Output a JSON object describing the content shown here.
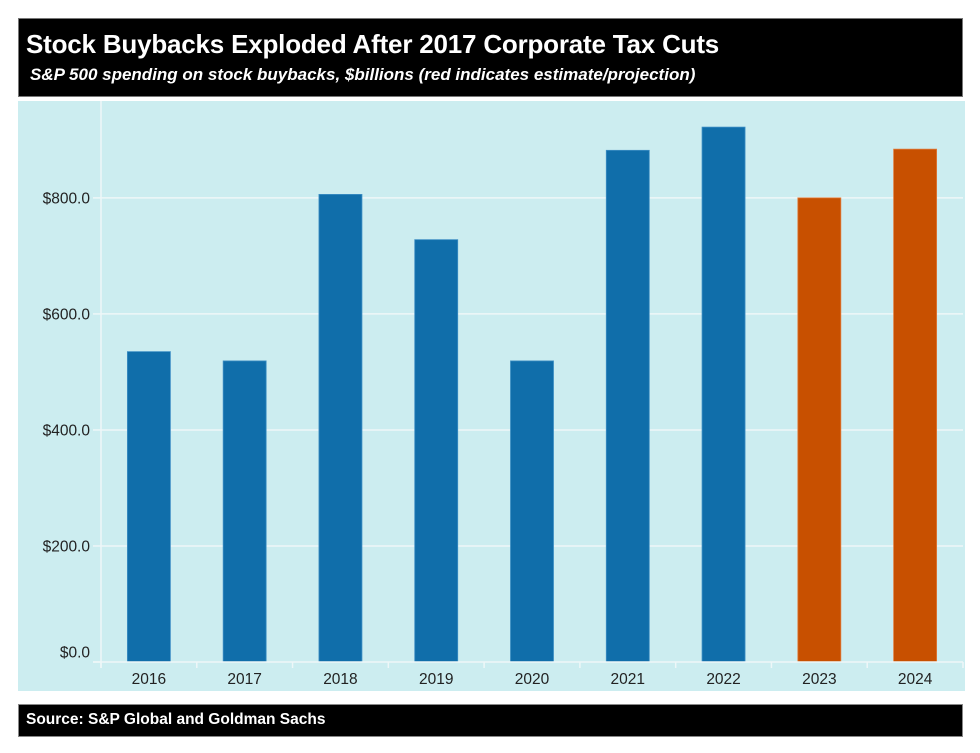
{
  "header": {
    "title": "Stock Buybacks Exploded After 2017 Corporate Tax Cuts",
    "subtitle": "S&P 500 spending on stock buybacks, $billions (red indicates estimate/projection)"
  },
  "footer": {
    "source": "Source: S&P Global and Goldman Sachs"
  },
  "colors": {
    "background": "#CCEDF0",
    "gridline": "#EEF7F8",
    "actual": "#106EAA",
    "estimate": "#C85000",
    "text": "#222222"
  },
  "chart_data": {
    "type": "bar",
    "title": "Stock Buybacks Exploded After 2017 Corporate Tax Cuts",
    "subtitle": "S&P 500 spending on stock buybacks, $billions (red indicates estimate/projection)",
    "xlabel": "",
    "ylabel": "",
    "categories": [
      "2016",
      "2017",
      "2018",
      "2019",
      "2020",
      "2021",
      "2022",
      "2023",
      "2024"
    ],
    "values": [
      535,
      519,
      806,
      728,
      519,
      882,
      922,
      800,
      884
    ],
    "estimate": [
      false,
      false,
      false,
      false,
      false,
      false,
      false,
      true,
      true
    ],
    "ylim": [
      0,
      967
    ],
    "yticks": [
      0,
      200,
      400,
      600,
      800
    ],
    "ytick_labels": [
      "$0.0",
      "$200.0",
      "$400.0",
      "$600.0",
      "$800.0"
    ],
    "grid": true,
    "legend": "none"
  }
}
